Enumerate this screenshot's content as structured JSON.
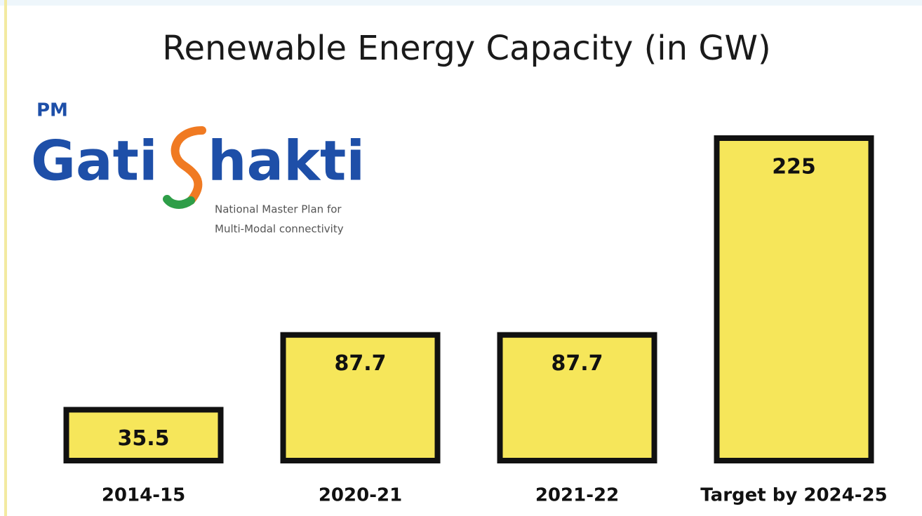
{
  "chart_data": {
    "type": "bar",
    "title": "Renewable Energy Capacity (in GW)",
    "categories": [
      "2014-15",
      "2020-21",
      "2021-22",
      "Target by 2024-25"
    ],
    "values": [
      35.5,
      87.7,
      87.7,
      225
    ],
    "color": "#f6e65a"
  },
  "logo": {
    "prefix": "PM",
    "word_1": "Gati",
    "word_2": "hakti",
    "tagline_1": "National Master Plan for",
    "tagline_2": "Multi-Modal connectivity"
  }
}
